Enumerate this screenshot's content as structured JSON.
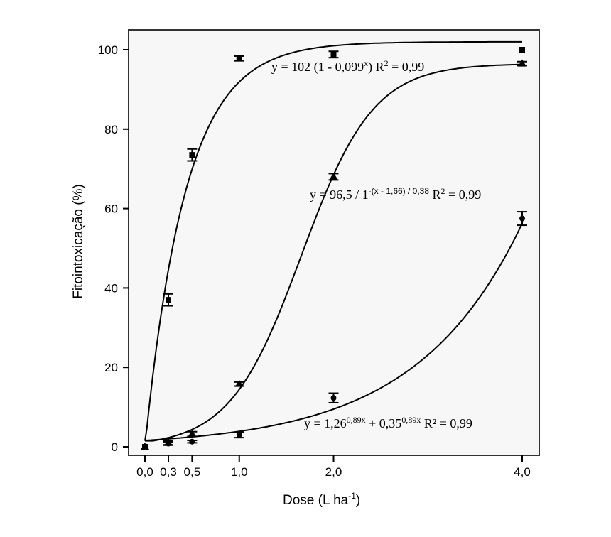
{
  "chart_data": {
    "type": "scatter",
    "title": "",
    "xlabel": "Dose (L ha",
    "xlabel_sup": "-1",
    "xlabel_close": ")",
    "ylabel": "Fitointoxicação (%)",
    "xlim": [
      -0.2,
      4.2
    ],
    "ylim": [
      -1,
      106
    ],
    "x_ticks": [
      0,
      0.3,
      0.5,
      1.0,
      2.0,
      4.0
    ],
    "x_tick_labels": [
      "0,0",
      "0,3",
      "0,5",
      "1,0",
      "2,0",
      "4,0"
    ],
    "y_ticks": [
      0,
      20,
      40,
      60,
      80,
      100
    ],
    "y_tick_labels": [
      "0",
      "20",
      "40",
      "60",
      "80",
      "100"
    ],
    "grid": false,
    "series": [
      {
        "marker": "square",
        "x": [
          0,
          0.3,
          0.5,
          1.0,
          2.0,
          4.0
        ],
        "y": [
          0,
          37,
          73.5,
          97.8,
          98.8,
          100
        ],
        "err": [
          0,
          1.5,
          1.5,
          0.6,
          0.8,
          0
        ]
      },
      {
        "marker": "triangle",
        "x": [
          0,
          0.3,
          0.5,
          1.0,
          2.0,
          4.0
        ],
        "y": [
          0,
          1,
          3.2,
          15.8,
          68,
          96.5
        ],
        "err": [
          0,
          0.5,
          0.6,
          0.5,
          0.8,
          0.5
        ]
      },
      {
        "marker": "circle",
        "x": [
          0,
          0.3,
          0.5,
          1.0,
          2.0,
          4.0
        ],
        "y": [
          0,
          0.8,
          1.3,
          3,
          12.3,
          57.5
        ],
        "err": [
          0,
          0.4,
          0.3,
          0.7,
          1.2,
          1.7
        ]
      }
    ],
    "annotations": [
      {
        "main": "y = 102 (1 - 0,099",
        "sup": "x",
        "tail": ") R",
        "sup2": "2",
        "end": " = 0,99"
      },
      {
        "main": "y = 96,5 / 1",
        "sup": "-(x - 1,66) / 0,38",
        "tail": " R",
        "sup2": "2",
        "end": " = 0,99"
      },
      {
        "main": "y = 1,26",
        "sup": "0,89x",
        "tail": " + 0,35",
        "sup2": "0,89x",
        "end": "  R² = 0,99"
      }
    ],
    "colors": {
      "line": "#000000",
      "plot_bg": "#f7f7f7"
    }
  }
}
